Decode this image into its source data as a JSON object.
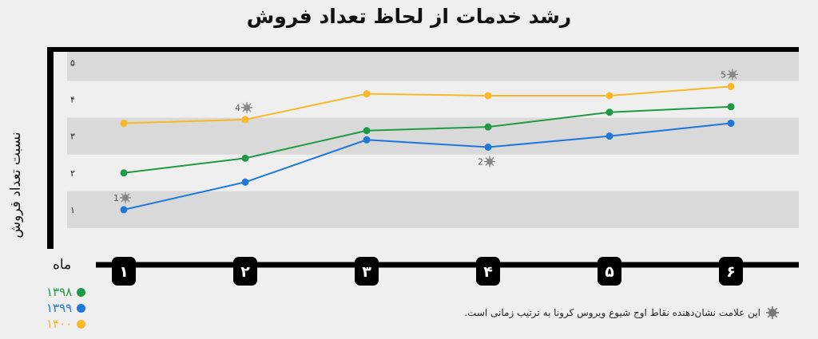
{
  "chart_data": {
    "type": "line",
    "title": "رشد خدمات از لحاظ تعداد فروش",
    "ylabel": "نسبت تعداد فروش",
    "xlabel": "ماه",
    "categories": [
      "۱",
      "۲",
      "۳",
      "۴",
      "۵",
      "۶"
    ],
    "ylim": [
      0,
      5.4
    ],
    "yticks": [
      {
        "value": 1,
        "label": "۱"
      },
      {
        "value": 2,
        "label": "۲"
      },
      {
        "value": 3,
        "label": "۳"
      },
      {
        "value": 4,
        "label": "۴"
      },
      {
        "value": 5,
        "label": "۵"
      }
    ],
    "series": [
      {
        "name": "۱۳۹۸",
        "color": "#1e9a45",
        "values": [
          2.0,
          2.4,
          3.15,
          3.25,
          3.65,
          3.8
        ]
      },
      {
        "name": "۱۳۹۹",
        "color": "#1f78d8",
        "values": [
          1.0,
          1.75,
          2.9,
          2.7,
          3.0,
          3.35
        ]
      },
      {
        "name": "۱۴۰۰",
        "color": "#f7b928",
        "values": [
          3.35,
          3.45,
          4.15,
          4.1,
          4.1,
          4.35
        ]
      }
    ],
    "annotations": [
      {
        "label": "1",
        "series": 1,
        "index": 0,
        "icon": "virus-icon"
      },
      {
        "label": "2",
        "series": 1,
        "index": 3,
        "icon": "virus-icon"
      },
      {
        "label": "4",
        "series": 2,
        "index": 1,
        "icon": "virus-icon"
      },
      {
        "label": "5",
        "series": 2,
        "index": 5,
        "icon": "virus-icon"
      }
    ],
    "note": "این علامت نشان‌دهنده نقاط اوج شیوع ویروس کرونا به ترتیب زمانی است.",
    "bands": "alternating grey",
    "grid": false
  }
}
